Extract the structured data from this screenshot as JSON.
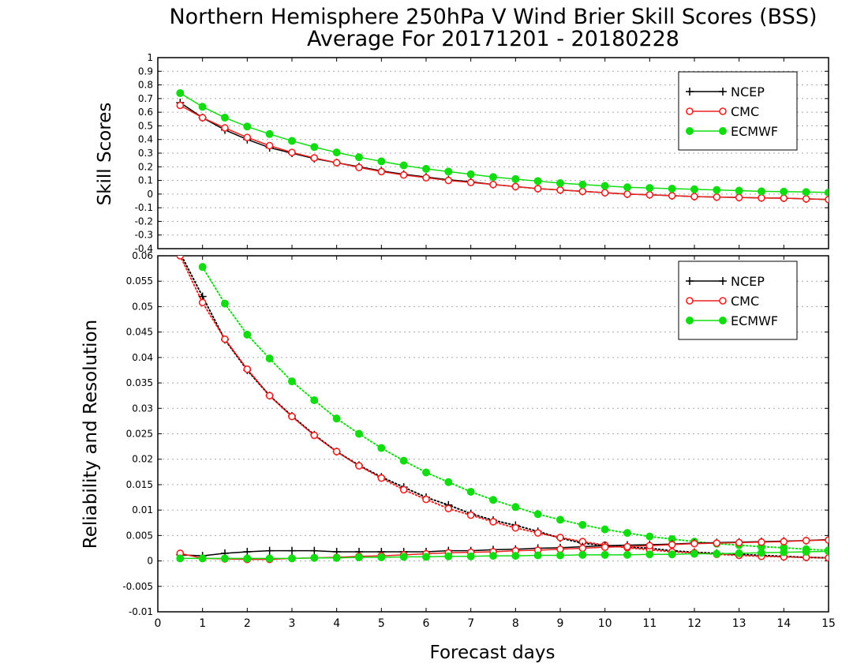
{
  "title_line1": "Northern Hemisphere 250hPa V Wind Brier Skill Scores (BSS)",
  "title_line2": "Average For 20171201 - 20180228",
  "xlabel": "Forecast days",
  "colors": {
    "NCEP": "#000000",
    "CMC": "#ee2020",
    "ECMWF": "#11dd11"
  },
  "chart_data": [
    {
      "type": "line",
      "panel": "top",
      "ylabel": "Skill Scores",
      "xlim": [
        0,
        15
      ],
      "ylim": [
        -0.4,
        1
      ],
      "grid": true,
      "legend_position": "top-right",
      "x": [
        0.5,
        1,
        1.5,
        2,
        2.5,
        3,
        3.5,
        4,
        4.5,
        5,
        5.5,
        6,
        6.5,
        7,
        7.5,
        8,
        8.5,
        9,
        9.5,
        10,
        10.5,
        11,
        11.5,
        12,
        12.5,
        13,
        13.5,
        14,
        14.5,
        15
      ],
      "series": [
        {
          "name": "NCEP",
          "marker": "plus",
          "style": "solid",
          "values": [
            0.67,
            0.56,
            0.47,
            0.4,
            0.34,
            0.3,
            0.26,
            0.23,
            0.2,
            0.17,
            0.145,
            0.125,
            0.105,
            0.09,
            0.07,
            0.055,
            0.04,
            0.03,
            0.02,
            0.01,
            0.0,
            -0.005,
            -0.012,
            -0.018,
            -0.022,
            -0.025,
            -0.028,
            -0.03,
            -0.035,
            -0.04
          ]
        },
        {
          "name": "CMC",
          "marker": "open-circle",
          "style": "solid",
          "values": [
            0.65,
            0.56,
            0.485,
            0.415,
            0.355,
            0.305,
            0.265,
            0.23,
            0.195,
            0.165,
            0.14,
            0.12,
            0.1,
            0.085,
            0.07,
            0.055,
            0.04,
            0.03,
            0.02,
            0.01,
            0.0,
            -0.005,
            -0.012,
            -0.018,
            -0.022,
            -0.025,
            -0.028,
            -0.03,
            -0.035,
            -0.04
          ]
        },
        {
          "name": "ECMWF",
          "marker": "filled-circle",
          "style": "solid",
          "values": [
            0.74,
            0.64,
            0.56,
            0.495,
            0.44,
            0.39,
            0.345,
            0.305,
            0.27,
            0.24,
            0.21,
            0.185,
            0.165,
            0.145,
            0.125,
            0.11,
            0.095,
            0.08,
            0.07,
            0.06,
            0.05,
            0.045,
            0.04,
            0.035,
            0.03,
            0.025,
            0.02,
            0.018,
            0.015,
            0.012
          ]
        }
      ]
    },
    {
      "type": "line",
      "panel": "bottom",
      "ylabel": "Reliability and Resolution",
      "xlim": [
        0,
        15
      ],
      "ylim": [
        -0.01,
        0.06
      ],
      "grid": true,
      "legend_position": "top-right",
      "x": [
        0.5,
        1,
        1.5,
        2,
        2.5,
        3,
        3.5,
        4,
        4.5,
        5,
        5.5,
        6,
        6.5,
        7,
        7.5,
        8,
        8.5,
        9,
        9.5,
        10,
        10.5,
        11,
        11.5,
        12,
        12.5,
        13,
        13.5,
        14,
        14.5,
        15
      ],
      "series": [
        {
          "name": "NCEP",
          "group": "resolution",
          "marker": "plus",
          "style": "dotted",
          "values": [
            0.0605,
            0.052,
            0.0435,
            0.0375,
            0.0325,
            0.0285,
            0.0248,
            0.0215,
            0.0188,
            0.0165,
            0.0145,
            0.0125,
            0.011,
            0.0093,
            0.008,
            0.007,
            0.0058,
            0.0045,
            0.0035,
            0.003,
            0.0027,
            0.0025,
            0.002,
            0.0017,
            0.0015,
            0.0013,
            0.0011,
            0.0009,
            0.0007,
            0.0006
          ]
        },
        {
          "name": "CMC",
          "group": "resolution",
          "marker": "open-circle",
          "style": "dotted",
          "values": [
            0.06,
            0.0508,
            0.0436,
            0.0377,
            0.0325,
            0.0284,
            0.0247,
            0.0215,
            0.0187,
            0.0163,
            0.014,
            0.0121,
            0.0103,
            0.009,
            0.0077,
            0.0065,
            0.0055,
            0.0046,
            0.0038,
            0.0031,
            0.0026,
            0.0022,
            0.0018,
            0.0016,
            0.0013,
            0.0011,
            0.0009,
            0.0008,
            0.0007,
            0.0006
          ]
        },
        {
          "name": "ECMWF",
          "group": "resolution",
          "marker": "filled-circle",
          "style": "dotted",
          "values": [
            null,
            0.0578,
            0.0506,
            0.0445,
            0.0398,
            0.0353,
            0.0316,
            0.028,
            0.025,
            0.0222,
            0.0197,
            0.0174,
            0.0155,
            0.0136,
            0.012,
            0.0106,
            0.0092,
            0.0081,
            0.0071,
            0.0062,
            0.0055,
            0.0048,
            0.0043,
            0.0038,
            0.0034,
            0.0031,
            0.0028,
            0.0026,
            0.0023,
            0.0021
          ]
        },
        {
          "name": "NCEP",
          "group": "reliability",
          "marker": "plus",
          "style": "solid",
          "values": [
            0.0012,
            0.001,
            0.0015,
            0.0018,
            0.002,
            0.002,
            0.002,
            0.0018,
            0.0018,
            0.0018,
            0.0018,
            0.0018,
            0.002,
            0.002,
            0.0022,
            0.0023,
            0.0025,
            0.0026,
            0.0028,
            0.003,
            0.0031,
            0.0032,
            0.0033,
            0.0035,
            0.0036,
            0.0037,
            0.0038,
            0.0039,
            0.004,
            0.0042
          ]
        },
        {
          "name": "CMC",
          "group": "reliability",
          "marker": "open-circle",
          "style": "solid",
          "values": [
            0.0015,
            0.0005,
            0.0004,
            0.0003,
            0.0003,
            0.0005,
            0.0006,
            0.0007,
            0.0009,
            0.001,
            0.0012,
            0.0014,
            0.0016,
            0.0017,
            0.0018,
            0.002,
            0.0021,
            0.0023,
            0.0025,
            0.0027,
            0.0028,
            0.003,
            0.0032,
            0.0034,
            0.0035,
            0.0036,
            0.0037,
            0.0038,
            0.004,
            0.0041
          ]
        },
        {
          "name": "ECMWF",
          "group": "reliability",
          "marker": "filled-circle",
          "style": "solid",
          "values": [
            0.0005,
            0.0005,
            0.0005,
            0.0005,
            0.0005,
            0.0005,
            0.0006,
            0.0006,
            0.0007,
            0.0007,
            0.0008,
            0.0008,
            0.0009,
            0.0009,
            0.001,
            0.001,
            0.0011,
            0.0011,
            0.0012,
            0.0012,
            0.0012,
            0.0013,
            0.0013,
            0.0014,
            0.0014,
            0.0015,
            0.0016,
            0.0017,
            0.0018,
            0.0019
          ]
        }
      ]
    }
  ]
}
